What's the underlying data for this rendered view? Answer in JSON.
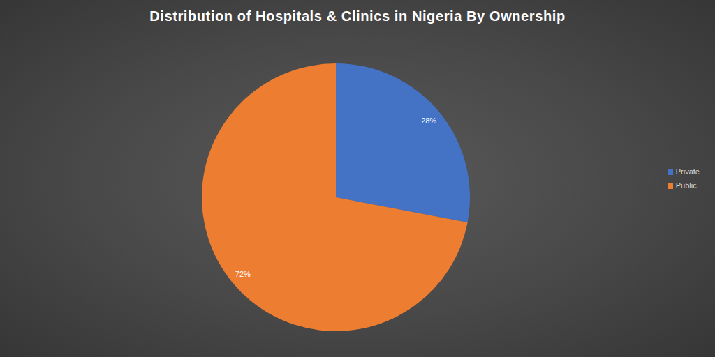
{
  "chart_data": {
    "type": "pie",
    "title": "Distribution of Hospitals & Clinics in Nigeria By Ownership",
    "categories": [
      "Private",
      "Public"
    ],
    "values": [
      28,
      72
    ],
    "value_labels": [
      "28%",
      "72%"
    ],
    "colors": [
      "#4472c4",
      "#ed7d31"
    ],
    "data_labels": true,
    "legend": "right"
  }
}
